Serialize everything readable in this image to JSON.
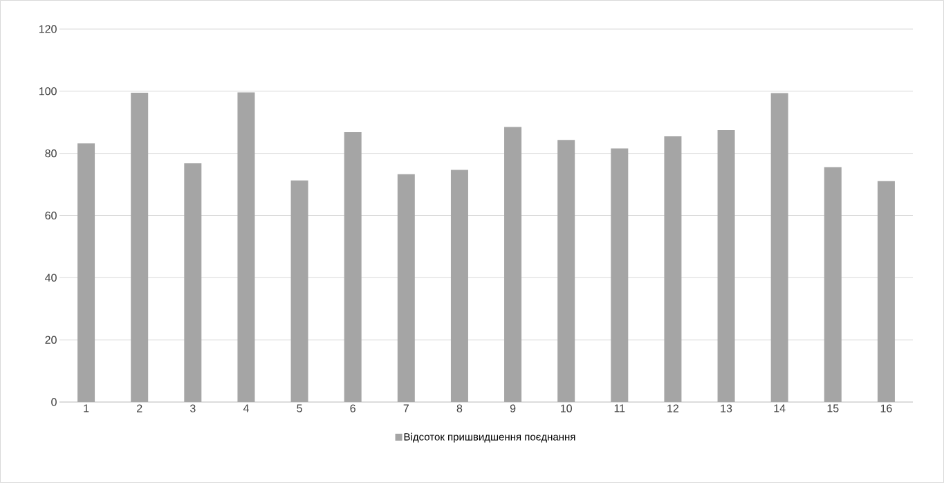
{
  "chart_data": {
    "type": "bar",
    "categories": [
      "1",
      "2",
      "3",
      "4",
      "5",
      "6",
      "7",
      "8",
      "9",
      "10",
      "11",
      "12",
      "13",
      "14",
      "15",
      "16"
    ],
    "series": [
      {
        "name": "Відсоток пришвидшення поєднання",
        "color": "#a5a5a5",
        "values": [
          83.2,
          99.5,
          76.8,
          99.6,
          71.3,
          86.8,
          73.3,
          74.7,
          88.5,
          84.3,
          81.6,
          85.5,
          87.5,
          99.4,
          75.6,
          71.1
        ]
      }
    ],
    "ylim": [
      0,
      120
    ],
    "yticks": [
      0,
      20,
      40,
      60,
      80,
      100,
      120
    ],
    "grid": "y",
    "legend": "bottom"
  }
}
